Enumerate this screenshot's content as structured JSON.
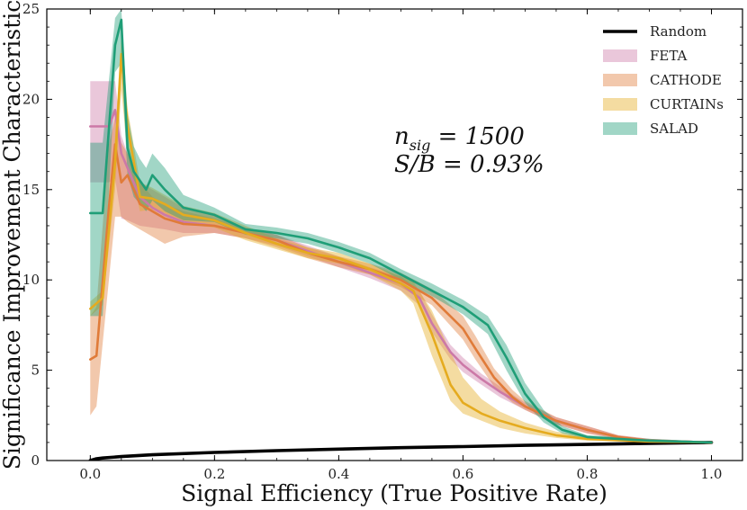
{
  "chart_data": {
    "type": "line",
    "title": "",
    "xlabel": "Signal Efficiency (True Positive Rate)",
    "ylabel": "Significance Improvement Characteristic",
    "xlim": [
      -0.07,
      1.05
    ],
    "ylim": [
      0,
      25
    ],
    "xticks": [
      0.0,
      0.2,
      0.4,
      0.6,
      0.8,
      1.0
    ],
    "xtick_labels": [
      "0.0",
      "0.2",
      "0.4",
      "0.6",
      "0.8",
      "1.0"
    ],
    "yticks": [
      0,
      5,
      10,
      15,
      20,
      25
    ],
    "ytick_labels": [
      "0",
      "5",
      "10",
      "15",
      "20",
      "25"
    ],
    "grid": false,
    "legend_position": "top-right",
    "annotation": {
      "line1_base": "n",
      "line1_sub": "sig",
      "line1_rest": " = 1500",
      "line2": "S/B = 0.93%"
    },
    "series": [
      {
        "name": "Random",
        "color": "#000000",
        "band": false,
        "x": [
          0.0,
          0.01,
          0.02,
          0.05,
          0.1,
          0.2,
          0.3,
          0.4,
          0.5,
          0.6,
          0.7,
          0.8,
          0.9,
          1.0
        ],
        "y": [
          0.0,
          0.1,
          0.14,
          0.22,
          0.32,
          0.45,
          0.55,
          0.63,
          0.71,
          0.77,
          0.84,
          0.89,
          0.95,
          1.0
        ]
      },
      {
        "name": "FETA",
        "color": "#cc79a7",
        "band": true,
        "x": [
          0.0,
          0.03,
          0.04,
          0.05,
          0.06,
          0.08,
          0.1,
          0.12,
          0.15,
          0.2,
          0.25,
          0.3,
          0.35,
          0.4,
          0.45,
          0.5,
          0.53,
          0.55,
          0.58,
          0.6,
          0.63,
          0.66,
          0.7,
          0.75,
          0.8,
          0.85,
          0.9,
          1.0
        ],
        "y": [
          18.5,
          18.5,
          19.4,
          17.0,
          16.2,
          14.6,
          14.0,
          13.6,
          13.2,
          13.0,
          12.6,
          12.2,
          11.6,
          11.0,
          10.4,
          9.8,
          9.0,
          7.6,
          6.0,
          5.3,
          4.5,
          3.8,
          3.0,
          2.2,
          1.7,
          1.3,
          1.1,
          1.0
        ],
        "lo": [
          15.4,
          15.4,
          15.6,
          13.4,
          13.3,
          13.0,
          12.9,
          12.8,
          12.6,
          12.6,
          12.3,
          11.9,
          11.3,
          10.7,
          10.1,
          9.4,
          8.6,
          7.1,
          5.6,
          4.9,
          4.2,
          3.5,
          2.8,
          2.0,
          1.5,
          1.2,
          1.0,
          0.95
        ],
        "hi": [
          21.0,
          21.0,
          21.0,
          18.0,
          17.0,
          15.4,
          15.0,
          14.6,
          14.0,
          13.6,
          12.9,
          12.5,
          11.9,
          11.3,
          10.7,
          10.2,
          9.4,
          8.1,
          6.4,
          5.7,
          4.8,
          4.1,
          3.2,
          2.4,
          1.9,
          1.4,
          1.2,
          1.05
        ]
      },
      {
        "name": "CATHODE",
        "color": "#e07b39",
        "band": true,
        "x": [
          0.0,
          0.01,
          0.03,
          0.04,
          0.05,
          0.06,
          0.08,
          0.1,
          0.12,
          0.15,
          0.2,
          0.25,
          0.3,
          0.35,
          0.4,
          0.45,
          0.5,
          0.55,
          0.6,
          0.62,
          0.65,
          0.68,
          0.7,
          0.75,
          0.8,
          0.85,
          0.9,
          1.0
        ],
        "y": [
          5.6,
          5.8,
          14.0,
          17.5,
          15.4,
          15.8,
          14.2,
          13.8,
          13.4,
          13.1,
          13.0,
          12.6,
          12.2,
          11.5,
          11.0,
          10.6,
          10.0,
          9.0,
          7.3,
          6.2,
          4.6,
          3.5,
          3.0,
          2.2,
          1.7,
          1.3,
          1.1,
          1.0
        ],
        "lo": [
          2.5,
          3.0,
          10.0,
          13.5,
          13.5,
          13.2,
          12.8,
          12.4,
          12.0,
          12.4,
          12.6,
          12.3,
          11.8,
          11.2,
          10.7,
          10.3,
          9.6,
          8.6,
          6.7,
          5.6,
          4.1,
          3.2,
          2.8,
          2.0,
          1.5,
          1.2,
          1.0,
          0.95
        ],
        "hi": [
          8.0,
          8.5,
          17.5,
          19.0,
          17.6,
          17.0,
          15.4,
          14.6,
          14.2,
          13.8,
          13.4,
          12.9,
          12.5,
          11.8,
          11.3,
          10.9,
          10.4,
          9.5,
          8.0,
          6.9,
          5.1,
          3.9,
          3.3,
          2.4,
          1.9,
          1.4,
          1.2,
          1.05
        ]
      },
      {
        "name": "CURTAINs",
        "color": "#e5ab1f",
        "band": true,
        "x": [
          0.0,
          0.02,
          0.04,
          0.05,
          0.06,
          0.08,
          0.1,
          0.12,
          0.15,
          0.2,
          0.25,
          0.3,
          0.35,
          0.4,
          0.45,
          0.5,
          0.52,
          0.55,
          0.58,
          0.6,
          0.63,
          0.66,
          0.7,
          0.75,
          0.8,
          0.9,
          1.0
        ],
        "y": [
          8.4,
          9.0,
          16.5,
          22.5,
          18.5,
          14.6,
          14.5,
          14.2,
          13.6,
          13.3,
          12.6,
          12.0,
          11.5,
          11.2,
          10.6,
          9.8,
          9.4,
          7.0,
          4.2,
          3.2,
          2.6,
          2.2,
          1.8,
          1.4,
          1.2,
          1.05,
          1.0
        ],
        "lo": [
          8.0,
          8.6,
          15.0,
          20.5,
          17.0,
          13.8,
          13.9,
          13.7,
          13.1,
          12.9,
          12.2,
          11.7,
          11.2,
          10.9,
          10.3,
          9.4,
          8.7,
          5.8,
          3.3,
          2.6,
          2.2,
          1.8,
          1.5,
          1.25,
          1.1,
          1.0,
          0.95
        ],
        "hi": [
          8.8,
          9.4,
          18.0,
          23.5,
          19.5,
          15.4,
          15.1,
          14.7,
          14.1,
          13.7,
          13.0,
          12.3,
          11.8,
          11.5,
          10.9,
          10.2,
          9.9,
          8.3,
          6.0,
          4.6,
          3.4,
          2.7,
          2.1,
          1.6,
          1.35,
          1.1,
          1.05
        ]
      },
      {
        "name": "SALAD",
        "color": "#1f9e77",
        "band": true,
        "x": [
          0.0,
          0.02,
          0.04,
          0.05,
          0.06,
          0.07,
          0.08,
          0.09,
          0.1,
          0.12,
          0.15,
          0.2,
          0.25,
          0.3,
          0.35,
          0.4,
          0.45,
          0.5,
          0.55,
          0.6,
          0.64,
          0.67,
          0.7,
          0.73,
          0.76,
          0.8,
          0.9,
          1.0
        ],
        "y": [
          13.7,
          13.7,
          23.0,
          24.4,
          17.3,
          16.0,
          15.5,
          15.0,
          15.8,
          15.0,
          14.0,
          13.6,
          12.8,
          12.6,
          12.3,
          11.8,
          11.2,
          10.3,
          9.4,
          8.5,
          7.5,
          5.7,
          3.7,
          2.4,
          1.7,
          1.3,
          1.1,
          1.0
        ],
        "lo": [
          8.0,
          8.0,
          21.5,
          22.0,
          15.8,
          14.6,
          14.2,
          13.8,
          14.4,
          13.8,
          13.3,
          13.2,
          12.5,
          12.3,
          12.0,
          11.5,
          10.9,
          10.0,
          9.1,
          8.1,
          7.0,
          5.0,
          3.2,
          2.1,
          1.5,
          1.2,
          1.0,
          0.95
        ],
        "hi": [
          17.6,
          17.6,
          24.5,
          25.0,
          19.2,
          17.4,
          16.7,
          16.2,
          17.0,
          16.2,
          14.7,
          14.0,
          13.1,
          12.9,
          12.6,
          12.1,
          11.5,
          10.6,
          9.8,
          8.9,
          8.0,
          6.4,
          4.3,
          2.8,
          1.9,
          1.4,
          1.2,
          1.05
        ]
      }
    ]
  }
}
